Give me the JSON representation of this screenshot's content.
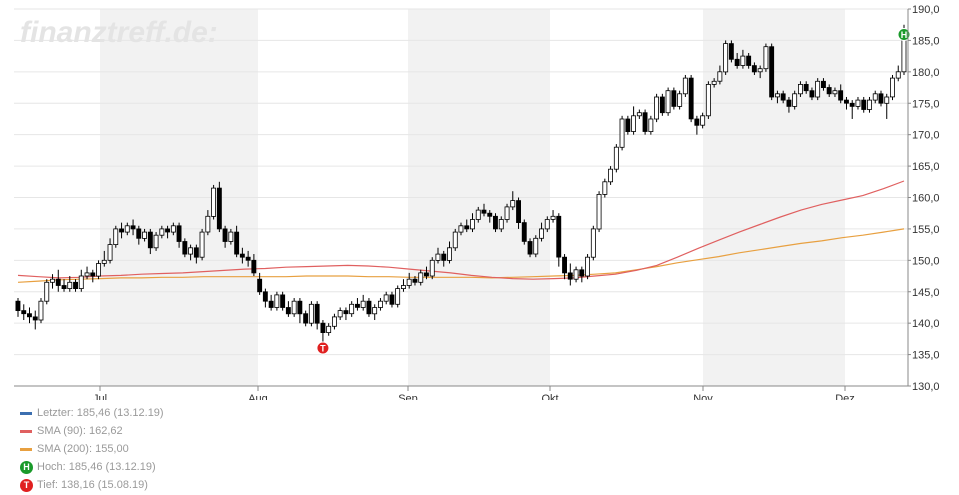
{
  "watermark": "finanztreff.de:",
  "chart_data": {
    "type": "candlestick",
    "ylim": [
      130,
      190
    ],
    "y_ticks": [
      130,
      135,
      140,
      145,
      150,
      155,
      160,
      165,
      170,
      175,
      180,
      185,
      190
    ],
    "y_tick_labels": [
      "130,0",
      "135,0",
      "140,0",
      "145,0",
      "150,0",
      "155,0",
      "160,0",
      "165,0",
      "170,0",
      "175,0",
      "180,0",
      "185,0",
      "190,0"
    ],
    "x_month_labels": [
      "Jul",
      "Aug",
      "Sep",
      "Okt",
      "Nov",
      "Dez"
    ],
    "grid": true,
    "legend_position": "bottom-left",
    "candles": [
      [
        143.5,
        142.0,
        144.0,
        141.0
      ],
      [
        142.0,
        141.5,
        143.0,
        140.5
      ],
      [
        141.5,
        141.0,
        142.5,
        140.0
      ],
      [
        141.0,
        140.5,
        142.0,
        139.0
      ],
      [
        140.5,
        143.5,
        144.0,
        140.0
      ],
      [
        143.5,
        146.5,
        147.0,
        143.0
      ],
      [
        146.5,
        147.0,
        147.8,
        145.5
      ],
      [
        147.0,
        146.0,
        148.5,
        145.0
      ],
      [
        146.0,
        145.5,
        147.0,
        145.0
      ],
      [
        145.5,
        146.5,
        147.5,
        145.0
      ],
      [
        146.5,
        145.5,
        147.0,
        145.0
      ],
      [
        145.5,
        147.5,
        148.5,
        145.0
      ],
      [
        147.5,
        148.0,
        149.0,
        147.0
      ],
      [
        148.0,
        147.5,
        148.5,
        146.5
      ],
      [
        147.5,
        149.5,
        150.0,
        147.0
      ],
      [
        149.5,
        150.0,
        151.5,
        149.0
      ],
      [
        150.0,
        152.5,
        153.5,
        149.5
      ],
      [
        152.5,
        155.0,
        155.5,
        152.0
      ],
      [
        155.0,
        154.5,
        156.0,
        153.5
      ],
      [
        154.5,
        155.5,
        156.0,
        154.0
      ],
      [
        155.5,
        155.0,
        156.5,
        154.0
      ],
      [
        155.0,
        153.5,
        155.5,
        152.5
      ],
      [
        153.5,
        154.5,
        155.0,
        153.0
      ],
      [
        154.5,
        152.0,
        155.0,
        151.0
      ],
      [
        152.0,
        154.0,
        154.5,
        151.5
      ],
      [
        154.0,
        155.0,
        155.5,
        153.5
      ],
      [
        155.0,
        154.5,
        155.5,
        153.5
      ],
      [
        154.5,
        155.5,
        156.0,
        154.0
      ],
      [
        155.5,
        153.0,
        156.0,
        152.0
      ],
      [
        153.0,
        151.0,
        153.5,
        150.5
      ],
      [
        151.0,
        152.0,
        152.5,
        150.0
      ],
      [
        152.0,
        150.5,
        152.5,
        149.5
      ],
      [
        150.5,
        154.5,
        155.0,
        150.0
      ],
      [
        154.5,
        157.0,
        158.0,
        154.0
      ],
      [
        157.0,
        161.5,
        162.0,
        156.5
      ],
      [
        161.5,
        155.0,
        162.5,
        154.5
      ],
      [
        155.0,
        153.0,
        155.5,
        152.0
      ],
      [
        153.0,
        154.5,
        155.0,
        152.5
      ],
      [
        154.5,
        151.0,
        155.5,
        150.5
      ],
      [
        151.0,
        150.5,
        152.0,
        149.5
      ],
      [
        150.5,
        150.0,
        151.5,
        149.0
      ],
      [
        150.0,
        148.0,
        151.0,
        147.5
      ],
      [
        147.0,
        145.0,
        148.0,
        144.5
      ],
      [
        145.0,
        143.5,
        145.5,
        142.5
      ],
      [
        143.5,
        142.5,
        144.5,
        142.0
      ],
      [
        142.5,
        144.5,
        145.0,
        142.0
      ],
      [
        144.5,
        142.5,
        145.0,
        142.0
      ],
      [
        142.5,
        141.5,
        143.5,
        141.0
      ],
      [
        141.5,
        143.5,
        144.0,
        141.0
      ],
      [
        143.5,
        141.5,
        144.0,
        140.0
      ],
      [
        141.5,
        140.0,
        142.0,
        139.5
      ],
      [
        140.0,
        143.0,
        143.5,
        139.5
      ],
      [
        143.0,
        140.0,
        143.5,
        139.0
      ],
      [
        140.0,
        138.5,
        140.5,
        137.0
      ],
      [
        138.5,
        139.5,
        140.0,
        138.0
      ],
      [
        139.5,
        141.0,
        141.5,
        139.0
      ],
      [
        141.0,
        142.0,
        142.5,
        140.5
      ],
      [
        142.0,
        141.5,
        142.5,
        140.5
      ],
      [
        141.5,
        143.0,
        143.5,
        141.0
      ],
      [
        143.0,
        142.5,
        144.0,
        142.0
      ],
      [
        142.5,
        143.5,
        144.5,
        142.0
      ],
      [
        143.5,
        141.5,
        144.0,
        141.0
      ],
      [
        141.5,
        142.5,
        143.0,
        140.5
      ],
      [
        142.5,
        143.5,
        144.0,
        142.0
      ],
      [
        143.5,
        144.5,
        145.0,
        143.0
      ],
      [
        144.5,
        143.0,
        145.0,
        142.5
      ],
      [
        143.0,
        145.5,
        146.0,
        142.5
      ],
      [
        145.5,
        146.0,
        147.0,
        145.0
      ],
      [
        146.0,
        147.0,
        148.0,
        145.5
      ],
      [
        147.0,
        146.5,
        147.5,
        146.0
      ],
      [
        146.5,
        148.0,
        148.5,
        146.0
      ],
      [
        148.0,
        147.5,
        149.0,
        147.0
      ],
      [
        147.5,
        150.0,
        150.5,
        147.0
      ],
      [
        150.0,
        151.0,
        152.0,
        149.5
      ],
      [
        151.0,
        150.0,
        151.5,
        149.0
      ],
      [
        150.0,
        152.0,
        153.0,
        149.5
      ],
      [
        152.0,
        154.5,
        155.0,
        151.5
      ],
      [
        154.5,
        155.5,
        156.0,
        154.0
      ],
      [
        155.5,
        155.0,
        156.5,
        154.5
      ],
      [
        155.0,
        156.5,
        157.5,
        154.5
      ],
      [
        156.5,
        158.0,
        158.5,
        156.0
      ],
      [
        158.0,
        157.5,
        159.0,
        157.0
      ],
      [
        157.5,
        157.0,
        158.0,
        156.0
      ],
      [
        157.0,
        155.0,
        157.5,
        154.5
      ],
      [
        155.0,
        156.5,
        157.0,
        154.5
      ],
      [
        156.5,
        158.5,
        159.0,
        156.0
      ],
      [
        158.5,
        159.5,
        161.0,
        158.0
      ],
      [
        159.5,
        156.0,
        160.0,
        155.0
      ],
      [
        156.0,
        153.0,
        156.5,
        152.5
      ],
      [
        153.0,
        151.0,
        153.5,
        150.5
      ],
      [
        151.0,
        153.5,
        154.0,
        150.5
      ],
      [
        153.5,
        155.0,
        156.0,
        153.0
      ],
      [
        155.0,
        156.5,
        157.0,
        154.5
      ],
      [
        156.5,
        157.0,
        158.0,
        156.0
      ],
      [
        157.0,
        150.5,
        157.5,
        149.0
      ],
      [
        150.5,
        148.0,
        151.0,
        147.0
      ],
      [
        148.0,
        147.0,
        149.5,
        146.0
      ],
      [
        147.0,
        148.5,
        149.0,
        146.5
      ],
      [
        148.5,
        147.5,
        149.0,
        146.5
      ],
      [
        147.5,
        150.5,
        151.0,
        147.0
      ],
      [
        150.5,
        155.0,
        155.5,
        150.0
      ],
      [
        155.0,
        160.5,
        161.0,
        154.5
      ],
      [
        160.5,
        162.5,
        163.0,
        160.0
      ],
      [
        162.5,
        164.5,
        165.0,
        162.0
      ],
      [
        164.5,
        168.0,
        168.5,
        164.0
      ],
      [
        168.0,
        172.5,
        173.0,
        167.5
      ],
      [
        172.5,
        170.5,
        173.0,
        170.0
      ],
      [
        170.5,
        173.0,
        174.5,
        170.0
      ],
      [
        173.0,
        173.5,
        174.0,
        172.5
      ],
      [
        173.5,
        170.5,
        174.0,
        170.0
      ],
      [
        170.5,
        172.5,
        173.0,
        170.0
      ],
      [
        172.5,
        176.0,
        176.5,
        172.0
      ],
      [
        176.0,
        173.5,
        176.5,
        173.0
      ],
      [
        173.5,
        177.0,
        177.5,
        173.0
      ],
      [
        177.0,
        174.5,
        177.5,
        174.0
      ],
      [
        174.5,
        176.5,
        177.0,
        174.0
      ],
      [
        176.5,
        179.0,
        179.5,
        176.0
      ],
      [
        179.0,
        172.5,
        179.5,
        172.0
      ],
      [
        172.5,
        171.5,
        173.0,
        170.0
      ],
      [
        171.5,
        173.0,
        173.5,
        171.0
      ],
      [
        173.0,
        178.0,
        178.5,
        172.5
      ],
      [
        178.0,
        178.5,
        179.0,
        177.5
      ],
      [
        178.5,
        180.0,
        181.0,
        178.0
      ],
      [
        180.0,
        184.5,
        185.0,
        179.5
      ],
      [
        184.5,
        182.0,
        185.0,
        181.5
      ],
      [
        182.0,
        181.0,
        183.0,
        180.5
      ],
      [
        181.0,
        182.5,
        183.5,
        180.5
      ],
      [
        182.5,
        181.0,
        183.0,
        180.5
      ],
      [
        181.0,
        180.0,
        181.5,
        179.5
      ],
      [
        180.0,
        180.5,
        181.0,
        179.0
      ],
      [
        180.5,
        184.0,
        184.5,
        180.0
      ],
      [
        184.0,
        176.0,
        184.5,
        175.5
      ],
      [
        176.0,
        176.5,
        177.0,
        175.0
      ],
      [
        176.5,
        175.5,
        177.0,
        175.0
      ],
      [
        175.5,
        174.5,
        176.0,
        173.5
      ],
      [
        174.5,
        176.5,
        177.0,
        174.0
      ],
      [
        176.5,
        178.0,
        178.5,
        176.0
      ],
      [
        178.0,
        177.0,
        178.5,
        176.5
      ],
      [
        177.0,
        176.0,
        177.5,
        175.5
      ],
      [
        176.0,
        178.5,
        179.0,
        175.5
      ],
      [
        178.5,
        177.5,
        179.0,
        177.0
      ],
      [
        177.5,
        176.5,
        178.0,
        176.0
      ],
      [
        176.5,
        177.0,
        177.5,
        176.0
      ],
      [
        177.0,
        175.5,
        178.0,
        175.0
      ],
      [
        175.5,
        175.0,
        176.0,
        174.0
      ],
      [
        175.0,
        174.5,
        175.5,
        172.5
      ],
      [
        174.5,
        175.5,
        176.0,
        174.0
      ],
      [
        175.5,
        174.0,
        176.0,
        173.5
      ],
      [
        174.0,
        175.5,
        176.0,
        173.5
      ],
      [
        175.5,
        176.5,
        177.0,
        175.0
      ],
      [
        176.5,
        175.0,
        177.0,
        174.5
      ],
      [
        175.0,
        176.0,
        176.5,
        172.5
      ],
      [
        176.0,
        179.0,
        179.5,
        175.5
      ],
      [
        179.0,
        180.0,
        181.0,
        178.5
      ],
      [
        180.0,
        185.46,
        187.5,
        179.5
      ]
    ],
    "sma90": [
      147.6,
      147.4,
      147.2,
      147.3,
      147.5,
      147.6,
      147.8,
      147.9,
      148.0,
      148.2,
      148.4,
      148.6,
      148.7,
      148.9,
      149.0,
      149.1,
      149.2,
      149.1,
      148.9,
      148.6,
      148.3,
      148.0,
      147.6,
      147.3,
      147.1,
      147.0,
      147.1,
      147.2,
      147.5,
      147.8,
      148.4,
      149.2,
      150.5,
      151.9,
      153.2,
      154.5,
      155.7,
      156.9,
      158.0,
      158.9,
      159.6,
      160.3,
      161.4,
      162.62
    ],
    "sma200": [
      146.5,
      146.7,
      146.9,
      147.0,
      147.1,
      147.2,
      147.2,
      147.3,
      147.3,
      147.4,
      147.4,
      147.4,
      147.4,
      147.4,
      147.5,
      147.5,
      147.5,
      147.4,
      147.4,
      147.3,
      147.3,
      147.3,
      147.3,
      147.2,
      147.3,
      147.4,
      147.5,
      147.6,
      147.8,
      148.0,
      148.5,
      149.0,
      149.6,
      150.1,
      150.6,
      151.2,
      151.7,
      152.2,
      152.7,
      153.1,
      153.6,
      154.0,
      154.5,
      155.0
    ],
    "high_point": {
      "value": 185.46,
      "date": "13.12.19",
      "marker_label": "H"
    },
    "low_point": {
      "value": 138.16,
      "date": "15.08.19",
      "marker_label": "T"
    },
    "colors": {
      "last": "#3c6fb0",
      "sma90": "#e06060",
      "sma200": "#e8a040",
      "high_marker": "#1a9a2a",
      "low_marker": "#e02020",
      "month_band": "#f2f2f2",
      "gridline": "#e6e6e6"
    }
  },
  "legend": {
    "last": "Letzter: 185,46 (13.12.19)",
    "sma90": "SMA (90): 162,62",
    "sma200": "SMA (200): 155,00",
    "high": "Hoch: 185,46 (13.12.19)",
    "low": "Tief: 138,16 (15.08.19)"
  }
}
